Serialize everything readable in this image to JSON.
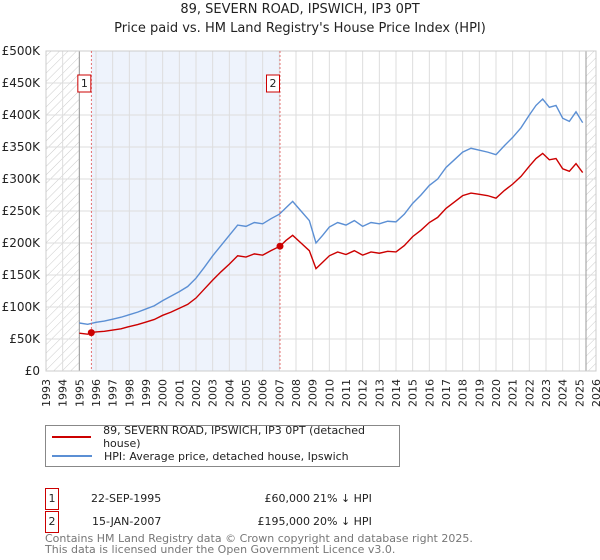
{
  "chart_data": {
    "type": "line",
    "title": "89, SEVERN ROAD, IPSWICH, IP3 0PT",
    "subtitle": "Price paid vs. HM Land Registry's House Price Index (HPI)",
    "xlim": [
      1993,
      2026
    ],
    "ylim": [
      0,
      500000
    ],
    "yticks": [
      {
        "v": 0,
        "label": "£0"
      },
      {
        "v": 50000,
        "label": "£50K"
      },
      {
        "v": 100000,
        "label": "£100K"
      },
      {
        "v": 150000,
        "label": "£150K"
      },
      {
        "v": 200000,
        "label": "£200K"
      },
      {
        "v": 250000,
        "label": "£250K"
      },
      {
        "v": 300000,
        "label": "£300K"
      },
      {
        "v": 350000,
        "label": "£350K"
      },
      {
        "v": 400000,
        "label": "£400K"
      },
      {
        "v": 450000,
        "label": "£450K"
      },
      {
        "v": 500000,
        "label": "£500K"
      }
    ],
    "xticks": [
      "1993",
      "1994",
      "1995",
      "1996",
      "1997",
      "1998",
      "1999",
      "2000",
      "2001",
      "2002",
      "2003",
      "2004",
      "2005",
      "2006",
      "2007",
      "2008",
      "2009",
      "2010",
      "2011",
      "2012",
      "2013",
      "2014",
      "2015",
      "2016",
      "2017",
      "2018",
      "2019",
      "2020",
      "2021",
      "2022",
      "2023",
      "2024",
      "2025",
      "2026"
    ],
    "series": [
      {
        "name": "HPI: Average price, detached house, Ipswich",
        "color": "#5b8fd4",
        "x": [
          1995,
          1995.5,
          1996,
          1996.5,
          1997,
          1997.5,
          1998,
          1998.5,
          1999,
          1999.5,
          2000,
          2000.5,
          2001,
          2001.5,
          2002,
          2002.5,
          2003,
          2003.5,
          2004,
          2004.5,
          2005,
          2005.5,
          2006,
          2006.5,
          2007,
          2007.4,
          2007.8,
          2008.3,
          2008.8,
          2009.2,
          2009.6,
          2010,
          2010.5,
          2011,
          2011.5,
          2012,
          2012.5,
          2013,
          2013.5,
          2014,
          2014.5,
          2015,
          2015.5,
          2016,
          2016.5,
          2017,
          2017.5,
          2018,
          2018.5,
          2019,
          2019.5,
          2020,
          2020.5,
          2021,
          2021.5,
          2022,
          2022.4,
          2022.8,
          2023.2,
          2023.6,
          2024,
          2024.4,
          2024.8,
          2025.2
        ],
        "y": [
          75000,
          73000,
          76000,
          78000,
          81000,
          84000,
          88000,
          92000,
          97000,
          102000,
          110000,
          117000,
          124000,
          132000,
          145000,
          162000,
          180000,
          196000,
          212000,
          228000,
          226000,
          232000,
          230000,
          238000,
          245000,
          255000,
          265000,
          250000,
          235000,
          200000,
          212000,
          225000,
          232000,
          228000,
          235000,
          226000,
          232000,
          230000,
          234000,
          233000,
          245000,
          262000,
          275000,
          290000,
          300000,
          318000,
          330000,
          342000,
          348000,
          345000,
          342000,
          338000,
          352000,
          365000,
          380000,
          400000,
          415000,
          425000,
          412000,
          415000,
          395000,
          390000,
          405000,
          388000
        ]
      },
      {
        "name": "89, SEVERN ROAD, IPSWICH, IP3 0PT (detached house)",
        "color": "#cc0000",
        "x": [
          1995,
          1995.5,
          1995.72,
          1996,
          1996.5,
          1997,
          1997.5,
          1998,
          1998.5,
          1999,
          1999.5,
          2000,
          2000.5,
          2001,
          2001.5,
          2002,
          2002.5,
          2003,
          2003.5,
          2004,
          2004.5,
          2005,
          2005.5,
          2006,
          2006.5,
          2007.04,
          2007.4,
          2007.8,
          2008.3,
          2008.8,
          2009.2,
          2009.6,
          2010,
          2010.5,
          2011,
          2011.5,
          2012,
          2012.5,
          2013,
          2013.5,
          2014,
          2014.5,
          2015,
          2015.5,
          2016,
          2016.5,
          2017,
          2017.5,
          2018,
          2018.5,
          2019,
          2019.5,
          2020,
          2020.5,
          2021,
          2021.5,
          2022,
          2022.4,
          2022.8,
          2023.2,
          2023.6,
          2024,
          2024.4,
          2024.8,
          2025.2
        ],
        "y": [
          59000,
          57600,
          60000,
          61000,
          62000,
          64000,
          66000,
          69500,
          72500,
          76500,
          80500,
          87000,
          92000,
          98000,
          104000,
          114000,
          128000,
          142000,
          155000,
          167000,
          180000,
          178000,
          183000,
          181000,
          188000,
          195000,
          204000,
          212000,
          200000,
          188000,
          160000,
          170000,
          180000,
          186000,
          182000,
          188000,
          181000,
          186000,
          184000,
          187000,
          186000,
          196000,
          210000,
          220000,
          232000,
          240000,
          254000,
          264000,
          274000,
          278000,
          276000,
          274000,
          270000,
          282000,
          292000,
          304000,
          320000,
          332000,
          340000,
          330000,
          332000,
          316000,
          312000,
          324000,
          310000
        ]
      }
    ],
    "sales": [
      {
        "id": "1",
        "x": 1995.72,
        "y": 60000
      },
      {
        "id": "2",
        "x": 2007.04,
        "y": 195000
      }
    ],
    "data_start": 1995,
    "data_end": 2025.2
  },
  "legend": {
    "property": "89, SEVERN ROAD, IPSWICH, IP3 0PT (detached house)",
    "hpi": "HPI: Average price, detached house, Ipswich"
  },
  "transactions": [
    {
      "id": "1",
      "date": "22-SEP-1995",
      "price": "£60,000",
      "hpi": "21% ↓ HPI"
    },
    {
      "id": "2",
      "date": "15-JAN-2007",
      "price": "£195,000",
      "hpi": "20% ↓ HPI"
    }
  ],
  "footer": {
    "line1": "Contains HM Land Registry data © Crown copyright and database right 2025.",
    "line2": "This data is licensed under the Open Government Licence v3.0."
  },
  "colors": {
    "property": "#cc0000",
    "hpi": "#5b8fd4",
    "shade": "#eef3fc"
  }
}
